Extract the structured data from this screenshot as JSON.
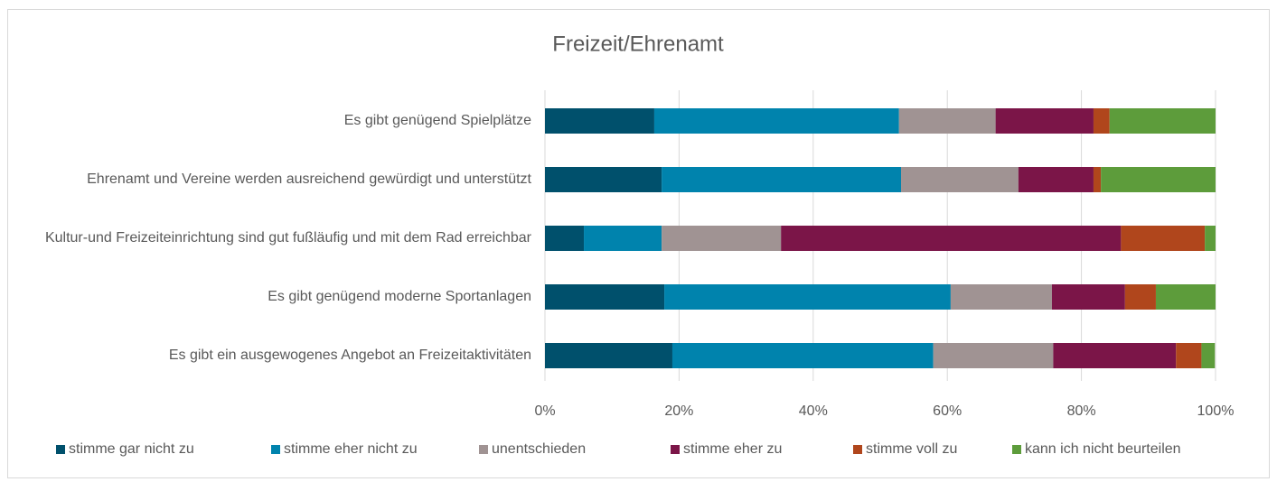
{
  "chart_data": {
    "type": "stacked-bar-horizontal",
    "title": "Freizeit/Ehrenamt",
    "categories": [
      "Es gibt genügend Spielplätze",
      "Ehrenamt und Vereine werden ausreichend gewürdigt und unterstützt",
      "Kultur-und Freizeiteinrichtung sind gut fußläufig und mit dem Rad erreichbar",
      "Es gibt genügend moderne Sportanlagen",
      "Es gibt ein ausgewogenes Angebot an Freizeitaktivitäten"
    ],
    "series": [
      {
        "name": "stimme gar nicht zu",
        "color": "#00506c",
        "values": [
          16.3,
          17.4,
          5.8,
          17.8,
          19.0
        ]
      },
      {
        "name": "stimme eher nicht zu",
        "color": "#0083ad",
        "values": [
          36.5,
          35.7,
          11.6,
          42.7,
          38.9
        ]
      },
      {
        "name": "unentschieden",
        "color": "#a09393",
        "values": [
          14.4,
          17.5,
          17.8,
          15.1,
          17.9
        ]
      },
      {
        "name": "stimme eher zu",
        "color": "#7b1548",
        "values": [
          14.6,
          11.2,
          50.7,
          10.9,
          18.3
        ]
      },
      {
        "name": "stimme voll zu",
        "color": "#b0461c",
        "values": [
          2.4,
          1.1,
          12.5,
          4.6,
          3.8
        ]
      },
      {
        "name": "kann ich nicht beurteilen",
        "color": "#5d9c3b",
        "values": [
          15.8,
          17.1,
          1.6,
          8.9,
          2.0
        ]
      }
    ],
    "xlim": [
      0,
      100
    ],
    "xticks": [
      {
        "value": 0,
        "label": "0%"
      },
      {
        "value": 20,
        "label": "20%"
      },
      {
        "value": 40,
        "label": "40%"
      },
      {
        "value": 60,
        "label": "60%"
      },
      {
        "value": 80,
        "label": "80%"
      },
      {
        "value": 100,
        "label": "100%"
      }
    ],
    "grid": true,
    "legend": "bottom"
  }
}
